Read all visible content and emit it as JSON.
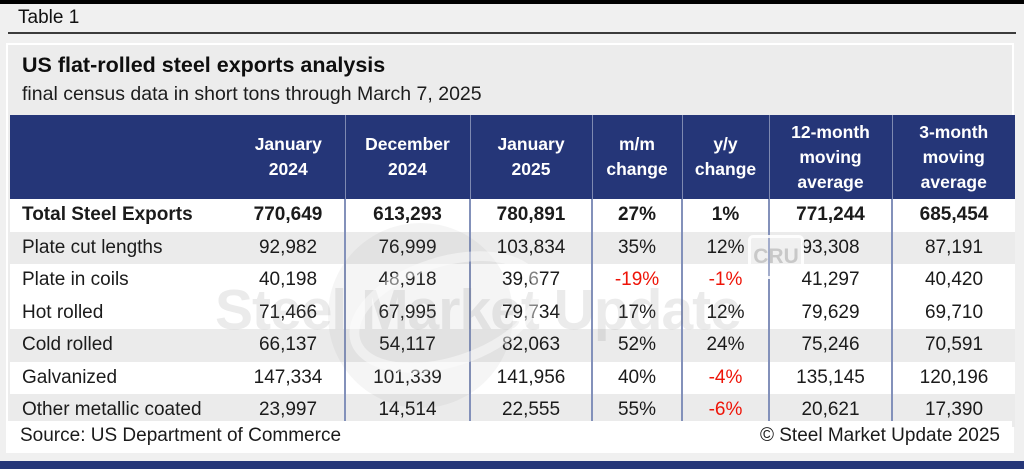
{
  "page": {
    "tag": "Table 1"
  },
  "chart_data": {
    "type": "table",
    "title": "US flat-rolled steel exports analysis",
    "subtitle": "final census data in short tons through March 7, 2025",
    "columns": [
      "",
      "January 2024",
      "December 2024",
      "January 2025",
      "m/m change",
      "y/y change",
      "12-month moving average",
      "3-month moving average"
    ],
    "rows": [
      {
        "label": "Total Steel Exports",
        "bold": true,
        "values": [
          "770,649",
          "613,293",
          "780,891",
          "27%",
          "1%",
          "771,244",
          "685,454"
        ]
      },
      {
        "label": "Plate cut lengths",
        "bold": false,
        "values": [
          "92,982",
          "76,999",
          "103,834",
          "35%",
          "12%",
          "93,308",
          "87,191"
        ]
      },
      {
        "label": "Plate in coils",
        "bold": false,
        "values": [
          "40,198",
          "48,918",
          "39,677",
          "-19%",
          "-1%",
          "41,297",
          "40,420"
        ]
      },
      {
        "label": "Hot rolled",
        "bold": false,
        "values": [
          "71,466",
          "67,995",
          "79,734",
          "17%",
          "12%",
          "79,629",
          "69,710"
        ]
      },
      {
        "label": "Cold rolled",
        "bold": false,
        "values": [
          "66,137",
          "54,117",
          "82,063",
          "52%",
          "24%",
          "75,246",
          "70,591"
        ]
      },
      {
        "label": "Galvanized",
        "bold": false,
        "values": [
          "147,334",
          "101,339",
          "141,956",
          "40%",
          "-4%",
          "135,145",
          "120,196"
        ]
      },
      {
        "label": "Other metallic coated",
        "bold": false,
        "values": [
          "23,997",
          "14,514",
          "22,555",
          "55%",
          "-6%",
          "20,621",
          "17,390"
        ]
      }
    ],
    "units": "short tons"
  },
  "footer": {
    "source": "Source: US Department of Commerce",
    "copyright": "© Steel Market Update 2025"
  },
  "watermark": {
    "text": "Steel Market Update",
    "badge": "CRU"
  },
  "colors": {
    "header_bg": "#253678",
    "negative_red": "#ee1408",
    "stripe_gray": "#ebebeb",
    "gridline_blue": "#8391ba",
    "bottom_bar": "#253678"
  }
}
